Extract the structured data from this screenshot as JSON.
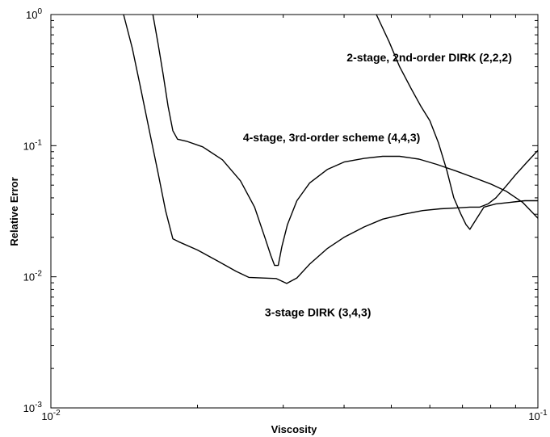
{
  "chart_data": {
    "type": "line",
    "xlabel": "Viscosity",
    "ylabel": "Relative Error",
    "xscale": "log",
    "yscale": "log",
    "xlim": [
      0.01,
      0.1
    ],
    "ylim": [
      0.001,
      1
    ],
    "grid": false,
    "legend": "none",
    "x_ticks": [
      {
        "value": 0.01,
        "base": "10",
        "exp": "-2"
      },
      {
        "value": 0.1,
        "base": "10",
        "exp": "-1"
      }
    ],
    "y_ticks": [
      {
        "value": 0.001,
        "base": "10",
        "exp": "-3"
      },
      {
        "value": 0.01,
        "base": "10",
        "exp": "-2"
      },
      {
        "value": 0.1,
        "base": "10",
        "exp": "-1"
      },
      {
        "value": 1,
        "base": "10",
        "exp": "0"
      }
    ],
    "series": [
      {
        "name": "2-stage, 2nd-order DIRK (2,2,2)",
        "color": "#000000",
        "points": [
          [
            0.0466,
            1.0
          ],
          [
            0.0495,
            0.62
          ],
          [
            0.052,
            0.4
          ],
          [
            0.055,
            0.27
          ],
          [
            0.0575,
            0.2
          ],
          [
            0.06,
            0.155
          ],
          [
            0.0625,
            0.105
          ],
          [
            0.065,
            0.065
          ],
          [
            0.0672,
            0.04
          ],
          [
            0.0695,
            0.03
          ],
          [
            0.0712,
            0.025
          ],
          [
            0.0725,
            0.023
          ],
          [
            0.0745,
            0.027
          ],
          [
            0.0775,
            0.034
          ],
          [
            0.082,
            0.036
          ],
          [
            0.088,
            0.037
          ],
          [
            0.094,
            0.038
          ],
          [
            0.1,
            0.038
          ]
        ]
      },
      {
        "name": "4-stage, 3rd-order scheme (4,4,3)",
        "color": "#000000",
        "points": [
          [
            0.0162,
            1.0
          ],
          [
            0.0166,
            0.6
          ],
          [
            0.017,
            0.35
          ],
          [
            0.0174,
            0.2
          ],
          [
            0.0178,
            0.13
          ],
          [
            0.0182,
            0.112
          ],
          [
            0.019,
            0.108
          ],
          [
            0.0205,
            0.098
          ],
          [
            0.0225,
            0.078
          ],
          [
            0.0245,
            0.054
          ],
          [
            0.0262,
            0.034
          ],
          [
            0.0275,
            0.02
          ],
          [
            0.0283,
            0.0145
          ],
          [
            0.0288,
            0.0122
          ],
          [
            0.0293,
            0.0122
          ],
          [
            0.0298,
            0.017
          ],
          [
            0.0306,
            0.025
          ],
          [
            0.032,
            0.038
          ],
          [
            0.034,
            0.052
          ],
          [
            0.037,
            0.066
          ],
          [
            0.04,
            0.075
          ],
          [
            0.044,
            0.08
          ],
          [
            0.048,
            0.083
          ],
          [
            0.052,
            0.083
          ],
          [
            0.057,
            0.079
          ],
          [
            0.062,
            0.072
          ],
          [
            0.068,
            0.064
          ],
          [
            0.074,
            0.057
          ],
          [
            0.08,
            0.051
          ],
          [
            0.086,
            0.045
          ],
          [
            0.093,
            0.037
          ],
          [
            0.1,
            0.028
          ]
        ]
      },
      {
        "name": "3-stage DIRK (3,4,3)",
        "color": "#000000",
        "points": [
          [
            0.0141,
            1.0
          ],
          [
            0.0147,
            0.55
          ],
          [
            0.0153,
            0.27
          ],
          [
            0.016,
            0.12
          ],
          [
            0.0166,
            0.062
          ],
          [
            0.0172,
            0.032
          ],
          [
            0.0178,
            0.0195
          ],
          [
            0.0183,
            0.0185
          ],
          [
            0.02,
            0.016
          ],
          [
            0.022,
            0.0132
          ],
          [
            0.024,
            0.011
          ],
          [
            0.0255,
            0.0099
          ],
          [
            0.027,
            0.0098
          ],
          [
            0.029,
            0.0097
          ],
          [
            0.0305,
            0.0089
          ],
          [
            0.032,
            0.0098
          ],
          [
            0.034,
            0.0125
          ],
          [
            0.037,
            0.0165
          ],
          [
            0.04,
            0.02
          ],
          [
            0.044,
            0.024
          ],
          [
            0.048,
            0.0275
          ],
          [
            0.053,
            0.03
          ],
          [
            0.058,
            0.032
          ],
          [
            0.063,
            0.033
          ],
          [
            0.068,
            0.0335
          ],
          [
            0.0725,
            0.034
          ],
          [
            0.076,
            0.034
          ],
          [
            0.079,
            0.036
          ],
          [
            0.082,
            0.04
          ],
          [
            0.086,
            0.049
          ],
          [
            0.09,
            0.06
          ],
          [
            0.095,
            0.075
          ],
          [
            0.1,
            0.092
          ]
        ]
      }
    ],
    "annotations": [
      {
        "text": "2-stage, 2nd-order DIRK (2,2,2)",
        "x": 0.0405,
        "y": 0.44
      },
      {
        "text": "4-stage, 3rd-order scheme (4,4,3)",
        "x": 0.0248,
        "y": 0.108
      },
      {
        "text": "3-stage DIRK (3,4,3)",
        "x": 0.0275,
        "y": 0.005
      }
    ]
  }
}
